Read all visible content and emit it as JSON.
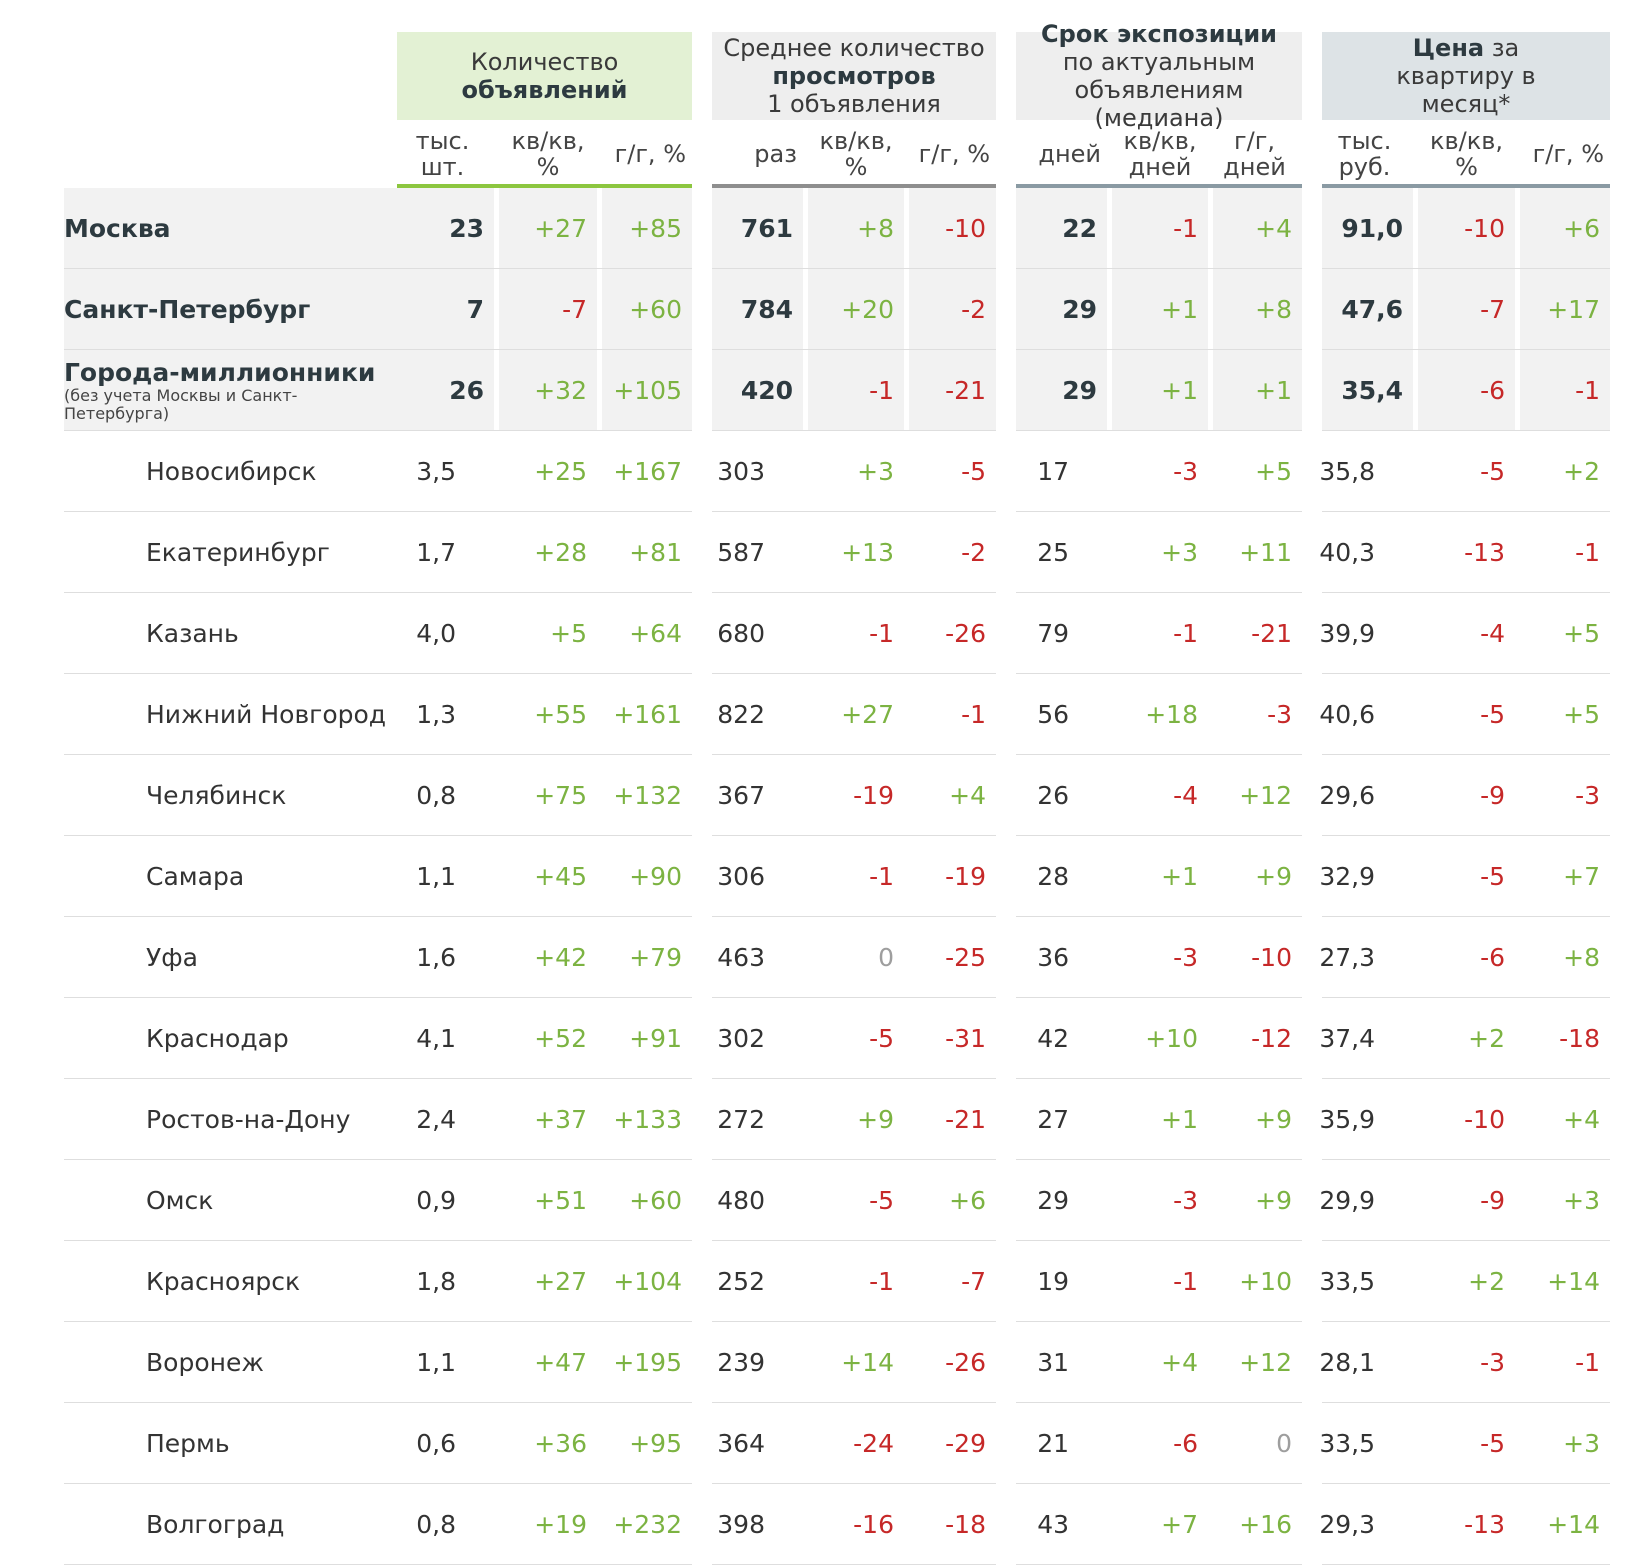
{
  "groups": [
    {
      "pre": "Количество",
      "bold": "объявлений",
      "post": ""
    },
    {
      "pre": "Среднее количество",
      "bold": "просмотров",
      "post": "1 объявления"
    },
    {
      "pre": "",
      "bold": "Срок экспозиции",
      "post": "по актуальным объявлениям (медиана)"
    },
    {
      "pre": "",
      "bold": "Цена",
      "post": "за квартиру в месяц*"
    }
  ],
  "subheaders": [
    "тыс. шт.",
    "кв/кв, %",
    "г/г, %",
    "раз",
    "кв/кв, %",
    "г/г, %",
    "дней",
    "кв/кв, дней",
    "г/г, дней",
    "тыс. руб.",
    "кв/кв, %",
    "г/г, %"
  ],
  "rows": [
    {
      "name": "Москва",
      "note": "",
      "major": true,
      "values": [
        "23",
        "+27",
        "+85",
        "761",
        "+8",
        "-10",
        "22",
        "-1",
        "+4",
        "91,0",
        "-10",
        "+6"
      ]
    },
    {
      "name": "Санкт-Петербург",
      "note": "",
      "major": true,
      "values": [
        "7",
        "-7",
        "+60",
        "784",
        "+20",
        "-2",
        "29",
        "+1",
        "+8",
        "47,6",
        "-7",
        "+17"
      ]
    },
    {
      "name": "Города-миллионники",
      "note": "(без учета Москвы и Санкт-Петербурга)",
      "major": true,
      "values": [
        "26",
        "+32",
        "+105",
        "420",
        "-1",
        "-21",
        "29",
        "+1",
        "+1",
        "35,4",
        "-6",
        "-1"
      ]
    },
    {
      "name": "Новосибирск",
      "note": "",
      "major": false,
      "values": [
        "3,5",
        "+25",
        "+167",
        "303",
        "+3",
        "-5",
        "17",
        "-3",
        "+5",
        "35,8",
        "-5",
        "+2"
      ]
    },
    {
      "name": "Екатеринбург",
      "note": "",
      "major": false,
      "values": [
        "1,7",
        "+28",
        "+81",
        "587",
        "+13",
        "-2",
        "25",
        "+3",
        "+11",
        "40,3",
        "-13",
        "-1"
      ]
    },
    {
      "name": "Казань",
      "note": "",
      "major": false,
      "values": [
        "4,0",
        "+5",
        "+64",
        "680",
        "-1",
        "-26",
        "79",
        "-1",
        "-21",
        "39,9",
        "-4",
        "+5"
      ]
    },
    {
      "name": "Нижний Новгород",
      "note": "",
      "major": false,
      "values": [
        "1,3",
        "+55",
        "+161",
        "822",
        "+27",
        "-1",
        "56",
        "+18",
        "-3",
        "40,6",
        "-5",
        "+5"
      ]
    },
    {
      "name": "Челябинск",
      "note": "",
      "major": false,
      "values": [
        "0,8",
        "+75",
        "+132",
        "367",
        "-19",
        "+4",
        "26",
        "-4",
        "+12",
        "29,6",
        "-9",
        "-3"
      ]
    },
    {
      "name": "Самара",
      "note": "",
      "major": false,
      "values": [
        "1,1",
        "+45",
        "+90",
        "306",
        "-1",
        "-19",
        "28",
        "+1",
        "+9",
        "32,9",
        "-5",
        "+7"
      ]
    },
    {
      "name": "Уфа",
      "note": "",
      "major": false,
      "values": [
        "1,6",
        "+42",
        "+79",
        "463",
        "0",
        "-25",
        "36",
        "-3",
        "-10",
        "27,3",
        "-6",
        "+8"
      ]
    },
    {
      "name": "Краснодар",
      "note": "",
      "major": false,
      "values": [
        "4,1",
        "+52",
        "+91",
        "302",
        "-5",
        "-31",
        "42",
        "+10",
        "-12",
        "37,4",
        "+2",
        "-18"
      ]
    },
    {
      "name": "Ростов-на-Дону",
      "note": "",
      "major": false,
      "values": [
        "2,4",
        "+37",
        "+133",
        "272",
        "+9",
        "-21",
        "27",
        "+1",
        "+9",
        "35,9",
        "-10",
        "+4"
      ]
    },
    {
      "name": "Омск",
      "note": "",
      "major": false,
      "values": [
        "0,9",
        "+51",
        "+60",
        "480",
        "-5",
        "+6",
        "29",
        "-3",
        "+9",
        "29,9",
        "-9",
        "+3"
      ]
    },
    {
      "name": "Красноярск",
      "note": "",
      "major": false,
      "values": [
        "1,8",
        "+27",
        "+104",
        "252",
        "-1",
        "-7",
        "19",
        "-1",
        "+10",
        "33,5",
        "+2",
        "+14"
      ]
    },
    {
      "name": "Воронеж",
      "note": "",
      "major": false,
      "values": [
        "1,1",
        "+47",
        "+195",
        "239",
        "+14",
        "-26",
        "31",
        "+4",
        "+12",
        "28,1",
        "-3",
        "-1"
      ]
    },
    {
      "name": "Пермь",
      "note": "",
      "major": false,
      "values": [
        "0,6",
        "+36",
        "+95",
        "364",
        "-24",
        "-29",
        "21",
        "-6",
        "0",
        "33,5",
        "-5",
        "+3"
      ]
    },
    {
      "name": "Волгоград",
      "note": "",
      "major": false,
      "values": [
        "0,8",
        "+19",
        "+232",
        "398",
        "-16",
        "-18",
        "43",
        "+7",
        "+16",
        "29,3",
        "-13",
        "+14"
      ]
    }
  ]
}
